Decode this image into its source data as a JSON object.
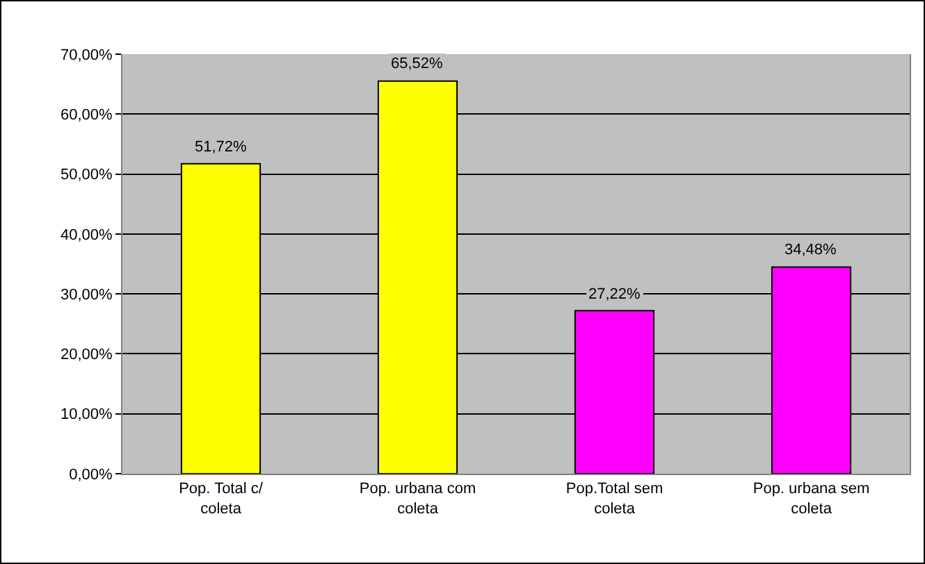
{
  "chart_data": {
    "type": "bar",
    "categories": [
      "Pop. Total c/ coleta",
      "Pop. urbana com coleta",
      "Pop.Total sem coleta",
      "Pop. urbana sem coleta"
    ],
    "values": [
      51.72,
      65.52,
      27.22,
      34.48
    ],
    "colors": [
      "#ffff00",
      "#ffff00",
      "#ff00ff",
      "#ff00ff"
    ],
    "value_labels": [
      "51,72%",
      "65,52%",
      "27,22%",
      "34,48%"
    ],
    "ylim": [
      0,
      70
    ],
    "yticks": [
      {
        "value": 0,
        "label": "0,00%"
      },
      {
        "value": 10,
        "label": "10,00%"
      },
      {
        "value": 20,
        "label": "20,00%"
      },
      {
        "value": 30,
        "label": "30,00%"
      },
      {
        "value": 40,
        "label": "40,00%"
      },
      {
        "value": 50,
        "label": "50,00%"
      },
      {
        "value": 60,
        "label": "60,00%"
      },
      {
        "value": 70,
        "label": "70,00%"
      }
    ],
    "grid": "y"
  }
}
